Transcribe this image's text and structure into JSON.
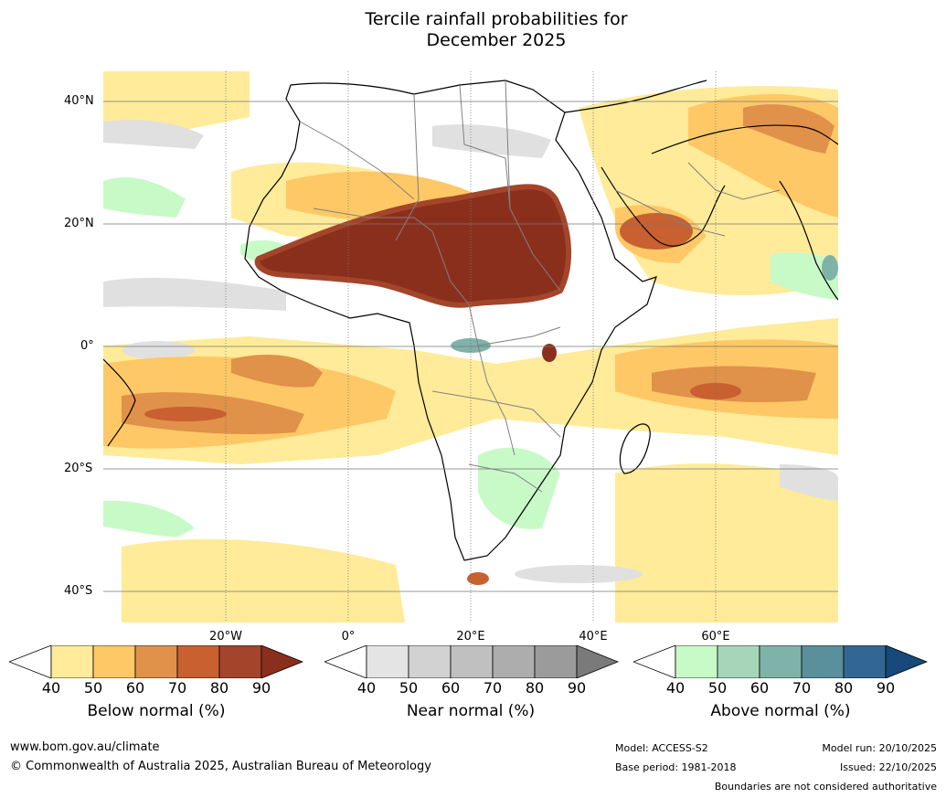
{
  "title": {
    "line1": "Tercile rainfall probabilities for",
    "line2": "December 2025"
  },
  "axes": {
    "lat_labels": [
      "40°N",
      "20°N",
      "0°",
      "20°S",
      "40°S"
    ],
    "lon_labels": [
      "20°W",
      "0°",
      "20°E",
      "40°E",
      "60°E"
    ]
  },
  "legend": {
    "ticks": [
      "40",
      "50",
      "60",
      "70",
      "80",
      "90"
    ],
    "below": {
      "caption": "Below normal (%)",
      "colors": [
        "#ffffff",
        "#ffeb99",
        "#fec866",
        "#e0914a",
        "#c8602f",
        "#a3452b",
        "#8b2f1d"
      ]
    },
    "near": {
      "caption": "Near normal (%)",
      "colors": [
        "#ffffff",
        "#e4e4e4",
        "#d2d2d2",
        "#c0c0c0",
        "#adadad",
        "#9b9b9b",
        "#7a7a7a"
      ]
    },
    "above": {
      "caption": "Above normal (%)",
      "colors": [
        "#ffffff",
        "#c8fac8",
        "#a5d6b9",
        "#7fb3a9",
        "#5a8f9c",
        "#326794",
        "#17497a"
      ]
    }
  },
  "footer": {
    "url": "www.bom.gov.au/climate",
    "copyright": "© Commonwealth of Australia 2025, Australian Bureau of Meteorology",
    "model": "Model: ACCESS-S2",
    "base_period": "Base period: 1981-2018",
    "model_run": "Model run: 20/10/2025",
    "issued": "Issued: 22/10/2025",
    "disclaimer": "Boundaries are not considered authoritative"
  }
}
